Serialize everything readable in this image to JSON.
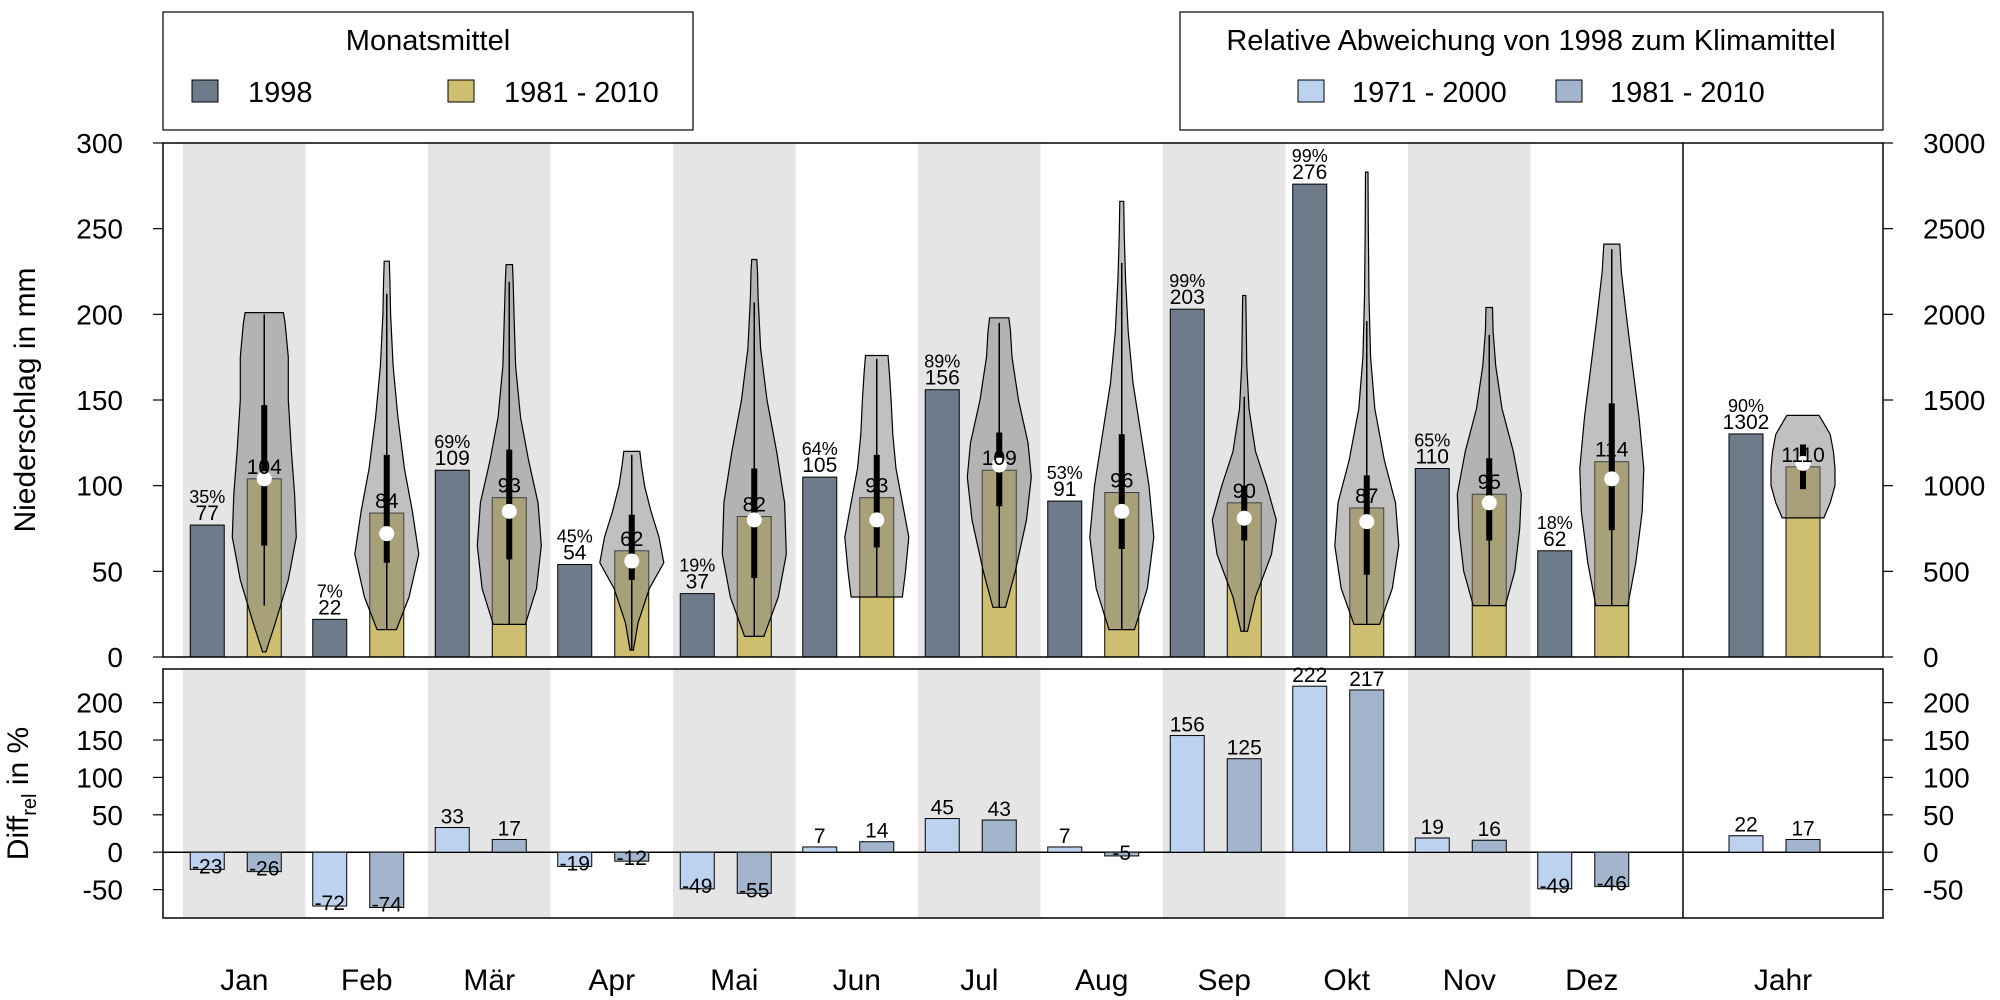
{
  "legends": {
    "left": {
      "title": "Monatsmittel",
      "items": [
        {
          "label": "1998",
          "color": "#6e7b8b"
        },
        {
          "label": "1981 - 2010",
          "color": "#cdbe70"
        }
      ]
    },
    "right": {
      "title": "Relative Abweichung von 1998 zum Klimamittel",
      "items": [
        {
          "label": "1971 - 2000",
          "color": "#bcd2ee"
        },
        {
          "label": "1981 - 2010",
          "color": "#a2b5cd"
        }
      ]
    }
  },
  "chart_data": [
    {
      "type": "bar",
      "title": "",
      "ylabel": "Niederschlag in mm",
      "ylim": [
        0,
        300
      ],
      "yticks": [
        "0",
        "50",
        "100",
        "150",
        "200",
        "250",
        "300"
      ],
      "y2lim": [
        0,
        3000
      ],
      "y2ticks": [
        "0",
        "500",
        "1000",
        "1500",
        "2000",
        "2500",
        "3000"
      ],
      "categories": [
        "Jan",
        "Feb",
        "Mär",
        "Apr",
        "Mai",
        "Jun",
        "Jul",
        "Aug",
        "Sep",
        "Okt",
        "Nov",
        "Dez",
        "Jahr"
      ],
      "series": [
        {
          "name": "1998",
          "values": [
            77,
            22,
            109,
            54,
            37,
            105,
            156,
            91,
            203,
            276,
            110,
            62,
            1302
          ],
          "labels": [
            "77",
            "22",
            "109",
            "54",
            "37",
            "105",
            "156",
            "91",
            "203",
            "276",
            "110",
            "62",
            "1302"
          ]
        },
        {
          "name": "1981 - 2010",
          "values": [
            104,
            84,
            93,
            62,
            82,
            93,
            109,
            96,
            90,
            87,
            95,
            114,
            1110
          ],
          "labels": [
            "104",
            "84",
            "93",
            "62",
            "82",
            "93",
            "109",
            "96",
            "90",
            "87",
            "95",
            "114",
            "1110"
          ]
        }
      ],
      "percentile_labels": [
        "35%",
        "7%",
        "69%",
        "45%",
        "19%",
        "64%",
        "89%",
        "53%",
        "99%",
        "99%",
        "65%",
        "18%",
        "90%"
      ],
      "violins": [
        {
          "min": 3,
          "max": 201,
          "q1": 65,
          "q3": 147,
          "median": 104,
          "lo": 30,
          "hi": 200,
          "shape": [
            [
              3,
              0.05
            ],
            [
              20,
              0.35
            ],
            [
              45,
              0.75
            ],
            [
              70,
              1.0
            ],
            [
              95,
              0.95
            ],
            [
              120,
              0.85
            ],
            [
              150,
              0.75
            ],
            [
              175,
              0.75
            ],
            [
              195,
              0.65
            ],
            [
              201,
              0.6
            ]
          ]
        },
        {
          "min": 16,
          "max": 231,
          "q1": 55,
          "q3": 118,
          "median": 72,
          "lo": 16,
          "hi": 212,
          "shape": [
            [
              16,
              0.3
            ],
            [
              35,
              0.7
            ],
            [
              60,
              1.0
            ],
            [
              85,
              0.8
            ],
            [
              110,
              0.55
            ],
            [
              140,
              0.35
            ],
            [
              170,
              0.2
            ],
            [
              200,
              0.12
            ],
            [
              220,
              0.1
            ],
            [
              231,
              0.08
            ]
          ]
        },
        {
          "min": 19,
          "max": 229,
          "q1": 57,
          "q3": 121,
          "median": 85,
          "lo": 19,
          "hi": 219,
          "shape": [
            [
              19,
              0.5
            ],
            [
              40,
              0.85
            ],
            [
              65,
              1.0
            ],
            [
              90,
              0.9
            ],
            [
              115,
              0.6
            ],
            [
              140,
              0.35
            ],
            [
              170,
              0.2
            ],
            [
              200,
              0.15
            ],
            [
              220,
              0.12
            ],
            [
              229,
              0.1
            ]
          ]
        },
        {
          "min": 4,
          "max": 120,
          "q1": 45,
          "q3": 83,
          "median": 56,
          "lo": 4,
          "hi": 118,
          "shape": [
            [
              4,
              0.05
            ],
            [
              20,
              0.2
            ],
            [
              40,
              0.55
            ],
            [
              55,
              1.0
            ],
            [
              70,
              0.85
            ],
            [
              85,
              0.6
            ],
            [
              100,
              0.4
            ],
            [
              112,
              0.3
            ],
            [
              120,
              0.25
            ]
          ]
        },
        {
          "min": 12,
          "max": 232,
          "q1": 46,
          "q3": 110,
          "median": 80,
          "lo": 12,
          "hi": 207,
          "shape": [
            [
              12,
              0.3
            ],
            [
              35,
              0.75
            ],
            [
              60,
              1.0
            ],
            [
              90,
              0.95
            ],
            [
              120,
              0.7
            ],
            [
              150,
              0.4
            ],
            [
              180,
              0.2
            ],
            [
              210,
              0.12
            ],
            [
              225,
              0.1
            ],
            [
              232,
              0.08
            ]
          ]
        },
        {
          "min": 35,
          "max": 176,
          "q1": 64,
          "q3": 118,
          "median": 80,
          "lo": 35,
          "hi": 174,
          "shape": [
            [
              35,
              0.8
            ],
            [
              50,
              0.9
            ],
            [
              70,
              1.0
            ],
            [
              90,
              0.8
            ],
            [
              110,
              0.6
            ],
            [
              130,
              0.5
            ],
            [
              150,
              0.45
            ],
            [
              165,
              0.4
            ],
            [
              176,
              0.35
            ]
          ]
        },
        {
          "min": 29,
          "max": 198,
          "q1": 88,
          "q3": 131,
          "median": 112,
          "lo": 29,
          "hi": 195,
          "shape": [
            [
              29,
              0.2
            ],
            [
              50,
              0.5
            ],
            [
              80,
              0.85
            ],
            [
              105,
              1.0
            ],
            [
              125,
              0.9
            ],
            [
              150,
              0.6
            ],
            [
              175,
              0.4
            ],
            [
              190,
              0.35
            ],
            [
              198,
              0.3
            ]
          ]
        },
        {
          "min": 16,
          "max": 266,
          "q1": 63,
          "q3": 130,
          "median": 85,
          "lo": 16,
          "hi": 230,
          "shape": [
            [
              16,
              0.4
            ],
            [
              40,
              0.8
            ],
            [
              70,
              1.0
            ],
            [
              100,
              0.85
            ],
            [
              130,
              0.6
            ],
            [
              160,
              0.35
            ],
            [
              190,
              0.2
            ],
            [
              220,
              0.12
            ],
            [
              245,
              0.08
            ],
            [
              266,
              0.06
            ]
          ]
        },
        {
          "min": 15,
          "max": 211,
          "q1": 68,
          "q3": 100,
          "median": 81,
          "lo": 15,
          "hi": 152,
          "shape": [
            [
              15,
              0.1
            ],
            [
              35,
              0.35
            ],
            [
              60,
              0.85
            ],
            [
              80,
              1.0
            ],
            [
              100,
              0.7
            ],
            [
              120,
              0.35
            ],
            [
              145,
              0.15
            ],
            [
              170,
              0.08
            ],
            [
              195,
              0.06
            ],
            [
              211,
              0.05
            ]
          ]
        },
        {
          "min": 19,
          "max": 283,
          "q1": 48,
          "q3": 106,
          "median": 79,
          "lo": 19,
          "hi": 196,
          "shape": [
            [
              19,
              0.4
            ],
            [
              40,
              0.8
            ],
            [
              65,
              1.0
            ],
            [
              90,
              0.9
            ],
            [
              115,
              0.55
            ],
            [
              145,
              0.25
            ],
            [
              175,
              0.12
            ],
            [
              210,
              0.07
            ],
            [
              250,
              0.05
            ],
            [
              283,
              0.04
            ]
          ]
        },
        {
          "min": 30,
          "max": 204,
          "q1": 68,
          "q3": 116,
          "median": 90,
          "lo": 30,
          "hi": 188,
          "shape": [
            [
              30,
              0.5
            ],
            [
              50,
              0.8
            ],
            [
              75,
              0.95
            ],
            [
              95,
              1.0
            ],
            [
              120,
              0.75
            ],
            [
              145,
              0.4
            ],
            [
              170,
              0.2
            ],
            [
              190,
              0.12
            ],
            [
              204,
              0.1
            ]
          ]
        },
        {
          "min": 30,
          "max": 241,
          "q1": 74,
          "q3": 148,
          "median": 104,
          "lo": 30,
          "hi": 238,
          "shape": [
            [
              30,
              0.5
            ],
            [
              55,
              0.75
            ],
            [
              85,
              0.95
            ],
            [
              110,
              1.0
            ],
            [
              140,
              0.85
            ],
            [
              170,
              0.65
            ],
            [
              200,
              0.45
            ],
            [
              225,
              0.3
            ],
            [
              241,
              0.25
            ]
          ]
        },
        {
          "min": 812,
          "max": 1410,
          "q1": 980,
          "q3": 1240,
          "median": 1130,
          "lo": 985,
          "hi": 1240,
          "shape": [
            [
              812,
              0.65
            ],
            [
              900,
              0.85
            ],
            [
              1000,
              1.0
            ],
            [
              1100,
              1.0
            ],
            [
              1200,
              0.95
            ],
            [
              1300,
              0.85
            ],
            [
              1380,
              0.6
            ],
            [
              1410,
              0.5
            ]
          ]
        }
      ]
    },
    {
      "type": "bar",
      "title": "",
      "ylabel": "Diff",
      "ylabel_sub": "rel",
      "ylabel_tail": " in %",
      "ylim": [
        -88,
        245
      ],
      "yticks": [
        -50,
        0,
        50,
        100,
        150,
        200
      ],
      "yticks_labels": [
        "-50",
        "0",
        "50",
        "100",
        "150",
        "200"
      ],
      "categories": [
        "Jan",
        "Feb",
        "Mär",
        "Apr",
        "Mai",
        "Jun",
        "Jul",
        "Aug",
        "Sep",
        "Okt",
        "Nov",
        "Dez",
        "Jahr"
      ],
      "series": [
        {
          "name": "1971 - 2000",
          "values": [
            -23,
            -72,
            33,
            -19,
            -49,
            7,
            45,
            7,
            156,
            222,
            19,
            -49,
            22
          ],
          "labels": [
            "-23",
            "-72",
            "33",
            "-19",
            "-49",
            "7",
            "45",
            "7",
            "156",
            "222",
            "19",
            "-49",
            "22"
          ]
        },
        {
          "name": "1981 - 2010",
          "values": [
            -26,
            -74,
            17,
            -12,
            -55,
            14,
            43,
            -5,
            125,
            217,
            16,
            -46,
            17
          ],
          "labels": [
            "-26",
            "-74",
            "17",
            "-12",
            "-55",
            "14",
            "43",
            "-5",
            "125",
            "217",
            "16",
            "-46",
            "17"
          ]
        }
      ]
    }
  ]
}
